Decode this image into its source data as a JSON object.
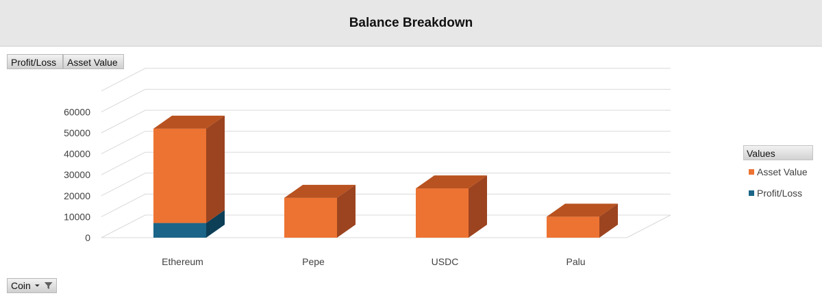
{
  "header": {
    "title": "Balance Breakdown"
  },
  "field_buttons": {
    "profit_loss": "Profit/Loss",
    "asset_value": "Asset Value",
    "coin": "Coin"
  },
  "icons": {
    "coin_dropdown": "dropdown-arrow-icon",
    "coin_filter": "filter-icon"
  },
  "legend": {
    "title": "Values",
    "items": [
      {
        "label": "Asset Value",
        "color": "#ed7332"
      },
      {
        "label": "Profit/Loss",
        "color": "#1b6588"
      }
    ]
  },
  "chart_data": {
    "type": "bar",
    "stacked": true,
    "three_d": true,
    "categories": [
      "Ethereum",
      "Pepe",
      "USDC",
      "Palu"
    ],
    "series": [
      {
        "name": "Profit/Loss",
        "values": [
          7000,
          0,
          0,
          0
        ],
        "color": "#1b6588"
      },
      {
        "name": "Asset Value",
        "values": [
          45000,
          19000,
          23500,
          10000
        ],
        "color": "#ed7332"
      }
    ],
    "title": "Balance Breakdown",
    "xlabel": "",
    "ylabel": "",
    "yticks": [
      0,
      10000,
      20000,
      30000,
      40000,
      50000,
      60000
    ],
    "ylim": [
      0,
      72000
    ],
    "grid": true,
    "legend_position": "right"
  }
}
